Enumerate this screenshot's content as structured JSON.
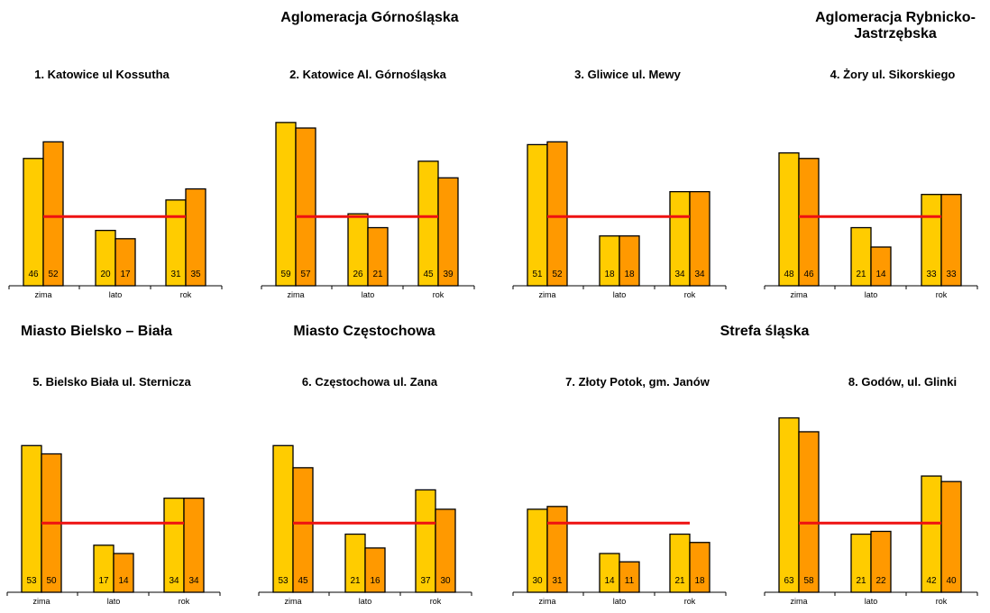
{
  "colors": {
    "winter_bar": "#FFCC00",
    "summer_bar": "#FF9900",
    "bar_stroke": "#000000",
    "reference_line": "#EE1111",
    "axis": "#000000"
  },
  "groups": [
    {
      "title": "Aglomeracja Górnośląska"
    },
    {
      "title": "Aglomeracja Rybnicko-Jastrzębska"
    },
    {
      "title": "Miasto Bielsko – Biała"
    },
    {
      "title": "Miasto Częstochowa"
    },
    {
      "title": "Strefa śląska"
    }
  ],
  "chart_data": [
    {
      "type": "bar",
      "title": "1. Katowice ul Kossutha",
      "categories": [
        "zima",
        "lato",
        "rok"
      ],
      "series": [
        {
          "values": [
            46,
            20,
            31
          ]
        },
        {
          "values": [
            52,
            17,
            35
          ]
        }
      ],
      "reference_line": 25
    },
    {
      "type": "bar",
      "title": "2. Katowice Al. Górnośląska",
      "categories": [
        "zima",
        "lato",
        "rok"
      ],
      "series": [
        {
          "values": [
            59,
            26,
            45
          ]
        },
        {
          "values": [
            57,
            21,
            39
          ]
        }
      ],
      "reference_line": 25
    },
    {
      "type": "bar",
      "title": "3. Gliwice ul. Mewy",
      "categories": [
        "zima",
        "lato",
        "rok"
      ],
      "series": [
        {
          "values": [
            51,
            18,
            34
          ]
        },
        {
          "values": [
            52,
            18,
            34
          ]
        }
      ],
      "reference_line": 25
    },
    {
      "type": "bar",
      "title": "4. Żory ul. Sikorskiego",
      "categories": [
        "zima",
        "lato",
        "rok"
      ],
      "series": [
        {
          "values": [
            48,
            21,
            33
          ]
        },
        {
          "values": [
            46,
            14,
            33
          ]
        }
      ],
      "reference_line": 25
    },
    {
      "type": "bar",
      "title": "5. Bielsko Biała ul. Sternicza",
      "categories": [
        "zima",
        "lato",
        "rok"
      ],
      "series": [
        {
          "values": [
            53,
            17,
            34
          ]
        },
        {
          "values": [
            50,
            14,
            34
          ]
        }
      ],
      "reference_line": 25
    },
    {
      "type": "bar",
      "title": "6. Częstochowa ul. Zana",
      "categories": [
        "zima",
        "lato",
        "rok"
      ],
      "series": [
        {
          "values": [
            53,
            21,
            37
          ]
        },
        {
          "values": [
            45,
            16,
            30
          ]
        }
      ],
      "reference_line": 25
    },
    {
      "type": "bar",
      "title": "7. Złoty Potok, gm. Janów",
      "categories": [
        "zima",
        "lato",
        "rok"
      ],
      "series": [
        {
          "values": [
            30,
            14,
            21
          ]
        },
        {
          "values": [
            31,
            11,
            18
          ]
        }
      ],
      "reference_line": 25
    },
    {
      "type": "bar",
      "title": "8. Godów, ul. Glinki",
      "categories": [
        "zima",
        "lato",
        "rok"
      ],
      "series": [
        {
          "values": [
            63,
            21,
            42
          ]
        },
        {
          "values": [
            58,
            22,
            40
          ]
        }
      ],
      "reference_line": 25
    }
  ]
}
